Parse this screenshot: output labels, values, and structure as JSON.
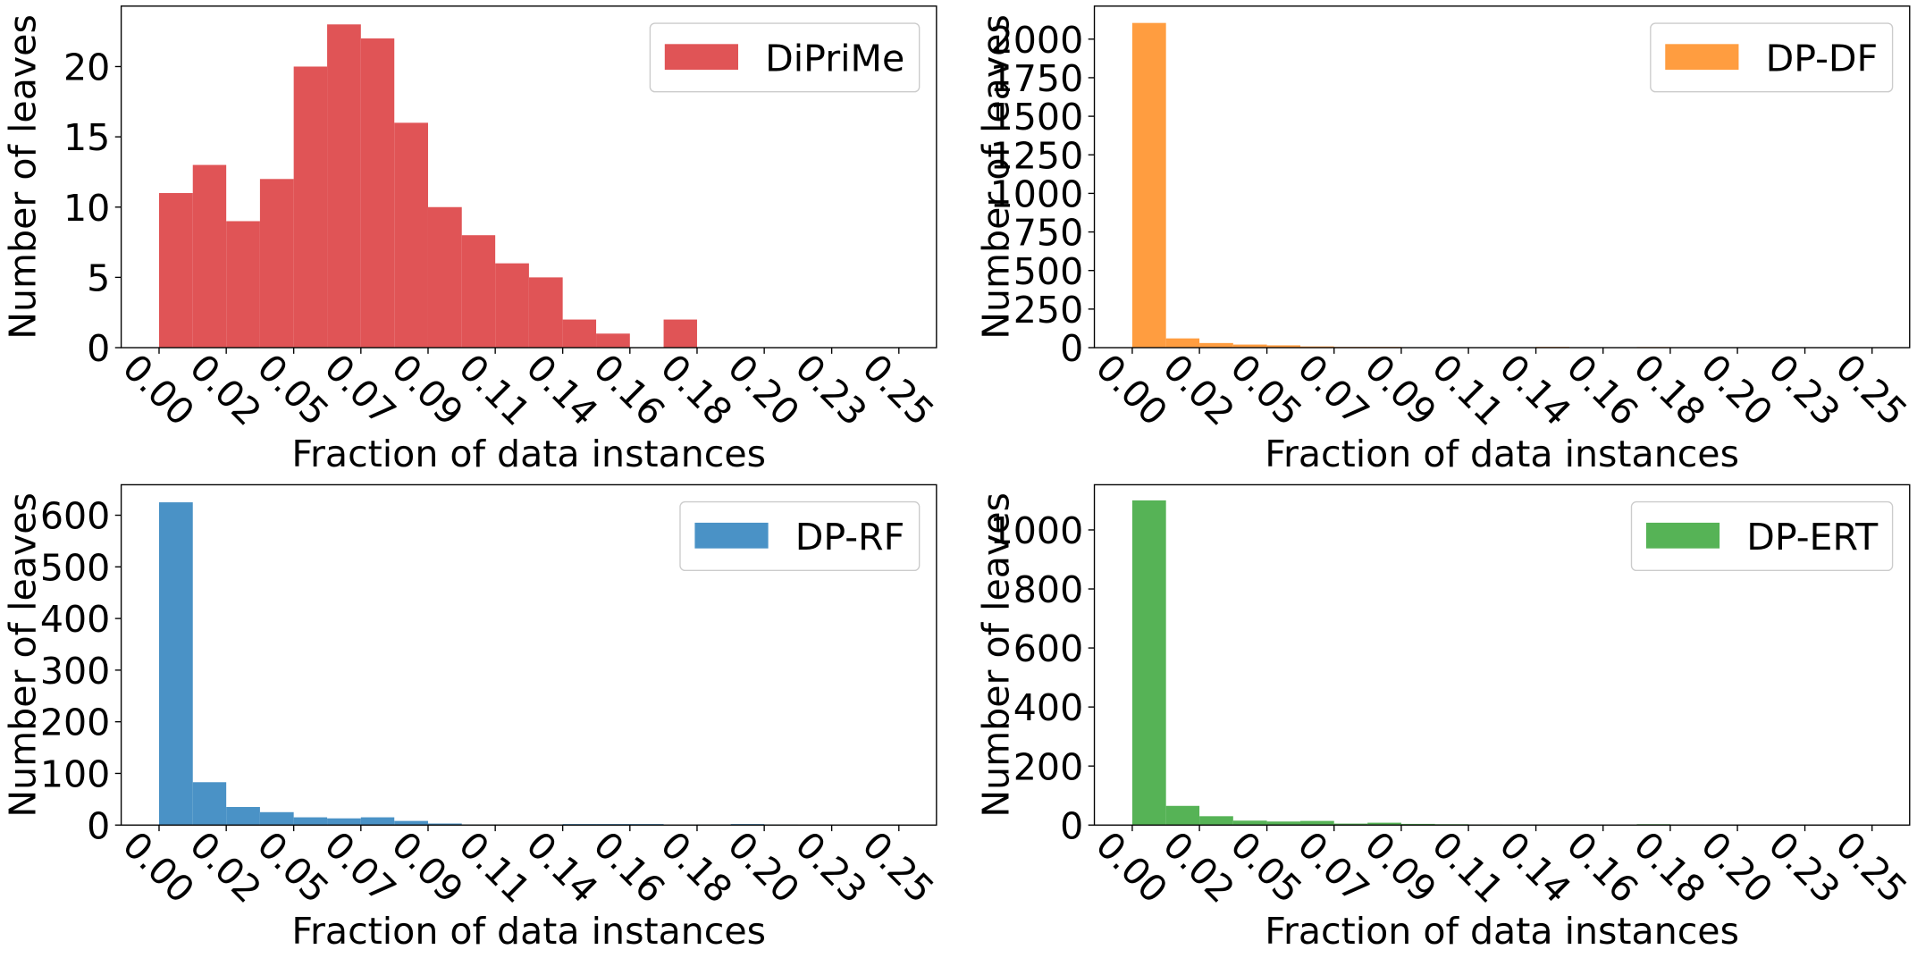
{
  "chart_data": [
    {
      "type": "histogram",
      "xlabel": "Fraction of data instances",
      "ylabel": "Number of leaves",
      "legend": "upper right",
      "bins": [
        0,
        0.0114,
        0.0227,
        0.0341,
        0.0455,
        0.0568,
        0.0682,
        0.0795,
        0.0909,
        0.1023,
        0.1136,
        0.125,
        0.1364,
        0.1477,
        0.1591,
        0.1705,
        0.1818,
        0.1932,
        0.2045,
        0.2159,
        0.2273,
        0.2386,
        0.25
      ],
      "series": [
        {
          "name": "DiPriMe",
          "color": "#e05456",
          "values": [
            11,
            13,
            9,
            12,
            20,
            23,
            22,
            16,
            10,
            8,
            6,
            5,
            2,
            1,
            0,
            2,
            0,
            0,
            0,
            0,
            0,
            0
          ]
        }
      ],
      "xlim": [
        -0.0128,
        0.2627
      ],
      "ylim": [
        0,
        24.3
      ],
      "yticks": [
        0,
        5,
        10,
        15,
        20
      ],
      "xticks": [
        {
          "value": 0,
          "label": "0.00"
        },
        {
          "value": 0.0227,
          "label": "0.02"
        },
        {
          "value": 0.0455,
          "label": "0.05"
        },
        {
          "value": 0.0682,
          "label": "0.07"
        },
        {
          "value": 0.0909,
          "label": "0.09"
        },
        {
          "value": 0.1136,
          "label": "0.11"
        },
        {
          "value": 0.1364,
          "label": "0.14"
        },
        {
          "value": 0.1591,
          "label": "0.16"
        },
        {
          "value": 0.1818,
          "label": "0.18"
        },
        {
          "value": 0.2045,
          "label": "0.20"
        },
        {
          "value": 0.2273,
          "label": "0.23"
        },
        0.25
      ]
    },
    {
      "type": "histogram",
      "xlabel": "Fraction of data instances",
      "ylabel": "Number of leaves",
      "legend": "upper right",
      "bins": [
        0,
        0.0114,
        0.0227,
        0.0341,
        0.0455,
        0.0568,
        0.0682,
        0.0795,
        0.0909,
        0.1023,
        0.1136,
        0.125,
        0.1364,
        0.1477,
        0.1591,
        0.1705,
        0.1818,
        0.1932,
        0.2045,
        0.2159,
        0.2273,
        0.2386,
        0.25
      ],
      "series": [
        {
          "name": "DP-DF",
          "color": "#ff9d40",
          "values": [
            2105,
            60,
            30,
            20,
            15,
            8,
            5,
            5,
            3,
            2,
            2,
            1,
            5,
            1,
            2,
            4,
            1,
            0,
            0,
            0,
            0,
            0
          ]
        }
      ],
      "xlim": [
        -0.0128,
        0.2627
      ],
      "ylim": [
        0,
        2214
      ],
      "yticks": [
        0,
        250,
        500,
        750,
        1000,
        1250,
        1500,
        1750,
        2000
      ],
      "xticks": [
        {
          "value": 0,
          "label": "0.00"
        },
        {
          "value": 0.0227,
          "label": "0.02"
        },
        {
          "value": 0.0455,
          "label": "0.05"
        },
        {
          "value": 0.0682,
          "label": "0.07"
        },
        {
          "value": 0.0909,
          "label": "0.09"
        },
        {
          "value": 0.1136,
          "label": "0.11"
        },
        {
          "value": 0.1364,
          "label": "0.14"
        },
        {
          "value": 0.1591,
          "label": "0.16"
        },
        {
          "value": 0.1818,
          "label": "0.18"
        },
        {
          "value": 0.2045,
          "label": "0.20"
        },
        {
          "value": 0.2273,
          "label": "0.23"
        },
        0.25
      ]
    },
    {
      "type": "histogram",
      "xlabel": "Fraction of data instances",
      "ylabel": "Number of leaves",
      "legend": "upper right",
      "bins": [
        0,
        0.0114,
        0.0227,
        0.0341,
        0.0455,
        0.0568,
        0.0682,
        0.0795,
        0.0909,
        0.1023,
        0.1136,
        0.125,
        0.1364,
        0.1477,
        0.1591,
        0.1705,
        0.1818,
        0.1932,
        0.2045,
        0.2159,
        0.2273,
        0.2386,
        0.25
      ],
      "series": [
        {
          "name": "DP-RF",
          "color": "#4a92c6",
          "values": [
            625,
            83,
            35,
            25,
            15,
            13,
            15,
            8,
            3,
            1,
            1,
            1,
            2,
            2,
            2,
            0,
            1,
            2,
            1,
            0,
            0,
            0
          ]
        }
      ],
      "xlim": [
        -0.0128,
        0.2627
      ],
      "ylim": [
        0,
        659
      ],
      "yticks": [
        0,
        100,
        200,
        300,
        400,
        500,
        600
      ],
      "xticks": [
        {
          "value": 0,
          "label": "0.00"
        },
        {
          "value": 0.0227,
          "label": "0.02"
        },
        {
          "value": 0.0455,
          "label": "0.05"
        },
        {
          "value": 0.0682,
          "label": "0.07"
        },
        {
          "value": 0.0909,
          "label": "0.09"
        },
        {
          "value": 0.1136,
          "label": "0.11"
        },
        {
          "value": 0.1364,
          "label": "0.14"
        },
        {
          "value": 0.1591,
          "label": "0.16"
        },
        {
          "value": 0.1818,
          "label": "0.18"
        },
        {
          "value": 0.2045,
          "label": "0.20"
        },
        {
          "value": 0.2273,
          "label": "0.23"
        },
        0.25
      ]
    },
    {
      "type": "histogram",
      "xlabel": "Fraction of data instances",
      "ylabel": "Number of leaves",
      "legend": "upper right",
      "bins": [
        0,
        0.0114,
        0.0227,
        0.0341,
        0.0455,
        0.0568,
        0.0682,
        0.0795,
        0.0909,
        0.1023,
        0.1136,
        0.125,
        0.1364,
        0.1477,
        0.1591,
        0.1705,
        0.1818,
        0.1932,
        0.2045,
        0.2159,
        0.2273,
        0.2386,
        0.25
      ],
      "series": [
        {
          "name": "DP-ERT",
          "color": "#56b356",
          "values": [
            1100,
            65,
            30,
            15,
            12,
            14,
            5,
            8,
            4,
            3,
            2,
            1,
            1,
            1,
            0,
            3,
            1,
            0,
            0,
            0,
            0,
            0
          ]
        }
      ],
      "xlim": [
        -0.0128,
        0.2627
      ],
      "ylim": [
        0,
        1153
      ],
      "yticks": [
        0,
        200,
        400,
        600,
        800,
        1000
      ],
      "xticks": [
        {
          "value": 0,
          "label": "0.00"
        },
        {
          "value": 0.0227,
          "label": "0.02"
        },
        {
          "value": 0.0455,
          "label": "0.05"
        },
        {
          "value": 0.0682,
          "label": "0.07"
        },
        {
          "value": 0.0909,
          "label": "0.09"
        },
        {
          "value": 0.1136,
          "label": "0.11"
        },
        {
          "value": 0.1364,
          "label": "0.14"
        },
        {
          "value": 0.1591,
          "label": "0.16"
        },
        {
          "value": 0.1818,
          "label": "0.18"
        },
        {
          "value": 0.2045,
          "label": "0.20"
        },
        {
          "value": 0.2273,
          "label": "0.23"
        },
        0.25
      ]
    }
  ]
}
